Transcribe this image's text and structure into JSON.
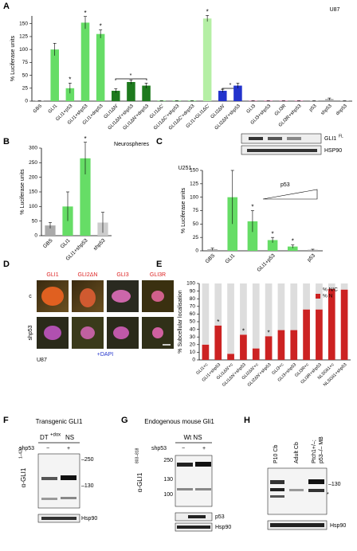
{
  "chart_data": [
    {
      "type": "bar",
      "title": "U87",
      "y_label": "% Luciferase units",
      "categories": [
        "GBS",
        "GLI1",
        "GLI1+p53",
        "GLI1+shp53",
        "GLI1+dnp53",
        "GLI1ΔN'",
        "GLI1ΔN'+shp53",
        "GLI1ΔN'+dnp53",
        "GLI1ΔC'",
        "GLI1ΔC'+shp53",
        "GLI1ΔC'+dnp53",
        "GLI1+GLI1ΔC'",
        "GLI2ΔN'",
        "GLI2ΔN'+shp53",
        "GLI3",
        "GLI3+shp53",
        "GLI3R",
        "GLI3R+shp53",
        "p53",
        "shp53",
        "dnp53"
      ],
      "values": [
        1,
        100,
        25,
        152,
        130,
        20,
        37,
        30,
        1,
        1,
        1,
        160,
        20,
        30,
        1,
        1,
        1,
        1,
        1,
        4,
        1
      ],
      "errors": [
        0,
        12,
        10,
        12,
        8,
        4,
        4,
        5,
        0,
        0,
        0,
        6,
        3,
        5,
        0,
        0,
        0,
        0,
        0,
        2,
        0
      ],
      "colors": [
        "#aaaaaa",
        "#66dd66",
        "#66dd66",
        "#66dd66",
        "#66dd66",
        "#1e7a1e",
        "#1e7a1e",
        "#1e7a1e",
        "#66dd66",
        "#66dd66",
        "#66dd66",
        "#b5efa5",
        "#2233cc",
        "#2233cc",
        "#d070a0",
        "#d070a0",
        "#d070a0",
        "#d070a0",
        "#aaaaaa",
        "#aaaaaa",
        "#aaaaaa"
      ],
      "significance": [
        null,
        null,
        "*",
        "*",
        "*",
        null,
        null,
        null,
        null,
        null,
        null,
        "*",
        null,
        null,
        null,
        null,
        null,
        null,
        null,
        null,
        null
      ],
      "annotations": [
        "*",
        "*"
      ],
      "ylim": [
        0,
        165
      ],
      "yticks": [
        0,
        25,
        50,
        75,
        100,
        125,
        150
      ]
    },
    {
      "type": "bar",
      "title": "Neurospheres",
      "y_label": "% Luciferase units",
      "categories": [
        "GBS",
        "GLI1",
        "GLI1+shp53",
        "shp53"
      ],
      "values": [
        35,
        100,
        265,
        45
      ],
      "errors": [
        10,
        50,
        55,
        35
      ],
      "colors": [
        "#aaaaaa",
        "#66dd66",
        "#66dd66",
        "#cccccc"
      ],
      "significance": [
        null,
        null,
        "*",
        null
      ],
      "ylim": [
        0,
        300
      ],
      "yticks": [
        0,
        50,
        100,
        150,
        200,
        250,
        300
      ]
    },
    {
      "type": "bar",
      "title": "U251",
      "y_label": "% Luciferase units",
      "categories": [
        "GBS",
        "GLI1",
        null,
        "GLI1+p53",
        null,
        "p53"
      ],
      "values": [
        3,
        100,
        55,
        20,
        8,
        2
      ],
      "errors": [
        2,
        50,
        20,
        5,
        3,
        1
      ],
      "colors": [
        "#aaaaaa",
        "#66dd66",
        "#66dd66",
        "#66dd66",
        "#66dd66",
        "#aaaaaa"
      ],
      "significance": [
        null,
        null,
        "*",
        "*",
        "*",
        null
      ],
      "ylim": [
        0,
        150
      ],
      "yticks": [
        0,
        25,
        50,
        75,
        100,
        125,
        150
      ]
    },
    {
      "type": "stacked_bar",
      "y_label": "% Subcellular localisation",
      "categories": [
        "GLI1+c",
        "GLI1+shp53",
        "GLI1ΔN'+c",
        "GLI1ΔN'+shp53",
        "GLI2ΔN'+c",
        "GLI2ΔN'+shp53",
        "GLI3+c",
        "GLI3+shp53",
        "GLI3R+c",
        "GLI3R+shp53",
        "NLSGli1+c",
        "NLSGli1+shp53"
      ],
      "series": [
        {
          "name": "% N/C",
          "color": "#dddddd",
          "values": [
            80,
            55,
            92,
            67,
            85,
            69,
            61,
            61,
            34,
            34,
            7,
            8
          ]
        },
        {
          "name": "% N",
          "color": "#cc2222",
          "values": [
            20,
            45,
            8,
            33,
            15,
            31,
            39,
            39,
            66,
            66,
            93,
            92
          ]
        }
      ],
      "significance": [
        null,
        "*",
        null,
        "*",
        null,
        "*",
        null,
        null,
        null,
        null,
        null,
        null
      ],
      "ylim": [
        0,
        100
      ],
      "yticks": [
        0,
        10,
        20,
        30,
        40,
        50,
        60,
        70,
        80,
        90,
        100
      ]
    }
  ],
  "figure": {
    "panel_labels": [
      "A",
      "B",
      "C",
      "D",
      "E",
      "F",
      "G",
      "H"
    ],
    "panel_c": {
      "blot": "GLI1",
      "blot_sup": "FL",
      "loading": "HSP90",
      "wedge": "p53"
    },
    "panel_d": {
      "columns": [
        "GLI1",
        "GLI2ΔN",
        "GLI3",
        "GLI3R"
      ],
      "rows": [
        "c",
        "shp53"
      ],
      "cell_line": "U87",
      "stain": "+DAPI"
    },
    "panel_f": {
      "title": "Transgenic GLI1",
      "condition": "DT",
      "condition_sup": "+dox",
      "condition_suffix": "NS",
      "treatment": "shp53",
      "lanes": [
        "−",
        "+"
      ],
      "markers": [
        "–250",
        "–130"
      ],
      "antibody": "α-GLI1",
      "antibody_sup": "1–420",
      "loading": "Hsp90"
    },
    "panel_g": {
      "title": "Endogenous mouse Gli1",
      "condition": "Wt NS",
      "treatment": "shp53",
      "lanes": [
        "−",
        "+"
      ],
      "markers": [
        "250",
        "130",
        "100"
      ],
      "antibody": "α-GLI1",
      "antibody_sup": "803–818",
      "blots": [
        "p53",
        "Hsp90"
      ]
    },
    "panel_h": {
      "lanes": [
        "P10 Cb",
        "Adult Cb"
      ],
      "lane3_lines": [
        "Ptch1+/–;",
        "p53–/– MB"
      ],
      "markers": [
        "–130"
      ],
      "star": "*",
      "loading": "Hsp90"
    }
  }
}
